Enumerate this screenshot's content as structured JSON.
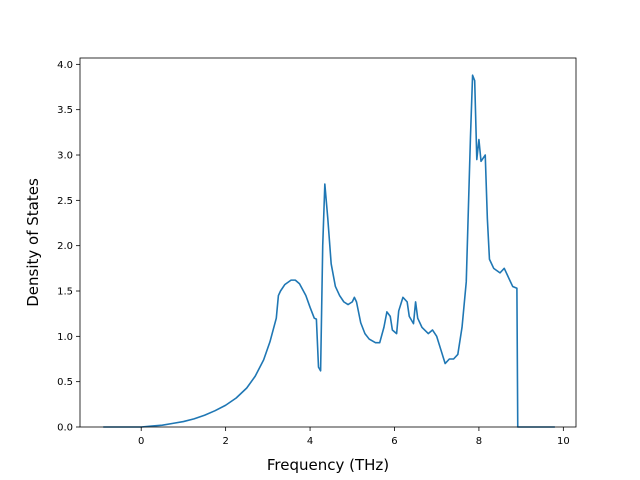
{
  "chart_data": {
    "type": "line",
    "xlabel": "Frequency (THz)",
    "ylabel": "Density of States",
    "xlim": [
      -1.45,
      10.3
    ],
    "ylim": [
      0.0,
      4.07
    ],
    "xticks": [
      0,
      2,
      4,
      6,
      8,
      10
    ],
    "yticks": [
      0.0,
      0.5,
      1.0,
      1.5,
      2.0,
      2.5,
      3.0,
      3.5,
      4.0
    ],
    "xtick_labels": [
      "0",
      "2",
      "4",
      "6",
      "8",
      "10"
    ],
    "ytick_labels": [
      "0.0",
      "0.5",
      "1.0",
      "1.5",
      "2.0",
      "2.5",
      "3.0",
      "3.5",
      "4.0"
    ],
    "grid": false,
    "series": [
      {
        "color": "#1f77b4",
        "x": [
          -0.9,
          -0.5,
          0.0,
          0.25,
          0.5,
          0.75,
          1.0,
          1.25,
          1.5,
          1.75,
          2.0,
          2.25,
          2.5,
          2.7,
          2.9,
          3.05,
          3.2,
          3.25,
          3.3,
          3.4,
          3.55,
          3.65,
          3.75,
          3.9,
          4.0,
          4.1,
          4.15,
          4.2,
          4.25,
          4.3,
          4.35,
          4.42,
          4.5,
          4.6,
          4.7,
          4.8,
          4.9,
          5.0,
          5.05,
          5.1,
          5.2,
          5.3,
          5.4,
          5.55,
          5.65,
          5.75,
          5.82,
          5.9,
          5.95,
          6.05,
          6.1,
          6.2,
          6.3,
          6.35,
          6.45,
          6.5,
          6.55,
          6.65,
          6.8,
          6.9,
          7.0,
          7.1,
          7.2,
          7.3,
          7.4,
          7.5,
          7.6,
          7.7,
          7.75,
          7.8,
          7.85,
          7.9,
          7.95,
          8.0,
          8.05,
          8.15,
          8.2,
          8.25,
          8.35,
          8.5,
          8.6,
          8.7,
          8.8,
          8.9,
          8.92,
          9.0,
          9.5,
          9.8
        ],
        "y": [
          0.0,
          0.0,
          0.0,
          0.01,
          0.02,
          0.04,
          0.06,
          0.09,
          0.13,
          0.18,
          0.24,
          0.32,
          0.43,
          0.56,
          0.74,
          0.94,
          1.2,
          1.45,
          1.5,
          1.57,
          1.62,
          1.62,
          1.58,
          1.45,
          1.32,
          1.2,
          1.19,
          0.66,
          0.62,
          2.0,
          2.68,
          2.3,
          1.8,
          1.55,
          1.45,
          1.38,
          1.35,
          1.38,
          1.43,
          1.38,
          1.15,
          1.03,
          0.97,
          0.93,
          0.93,
          1.1,
          1.27,
          1.22,
          1.07,
          1.03,
          1.28,
          1.43,
          1.38,
          1.22,
          1.14,
          1.38,
          1.2,
          1.1,
          1.03,
          1.07,
          1.0,
          0.85,
          0.7,
          0.75,
          0.75,
          0.8,
          1.1,
          1.6,
          2.4,
          3.2,
          3.88,
          3.82,
          2.95,
          3.17,
          2.93,
          3.0,
          2.3,
          1.85,
          1.75,
          1.7,
          1.75,
          1.65,
          1.55,
          1.53,
          0.0,
          0.0,
          0.0,
          0.0
        ]
      }
    ]
  }
}
